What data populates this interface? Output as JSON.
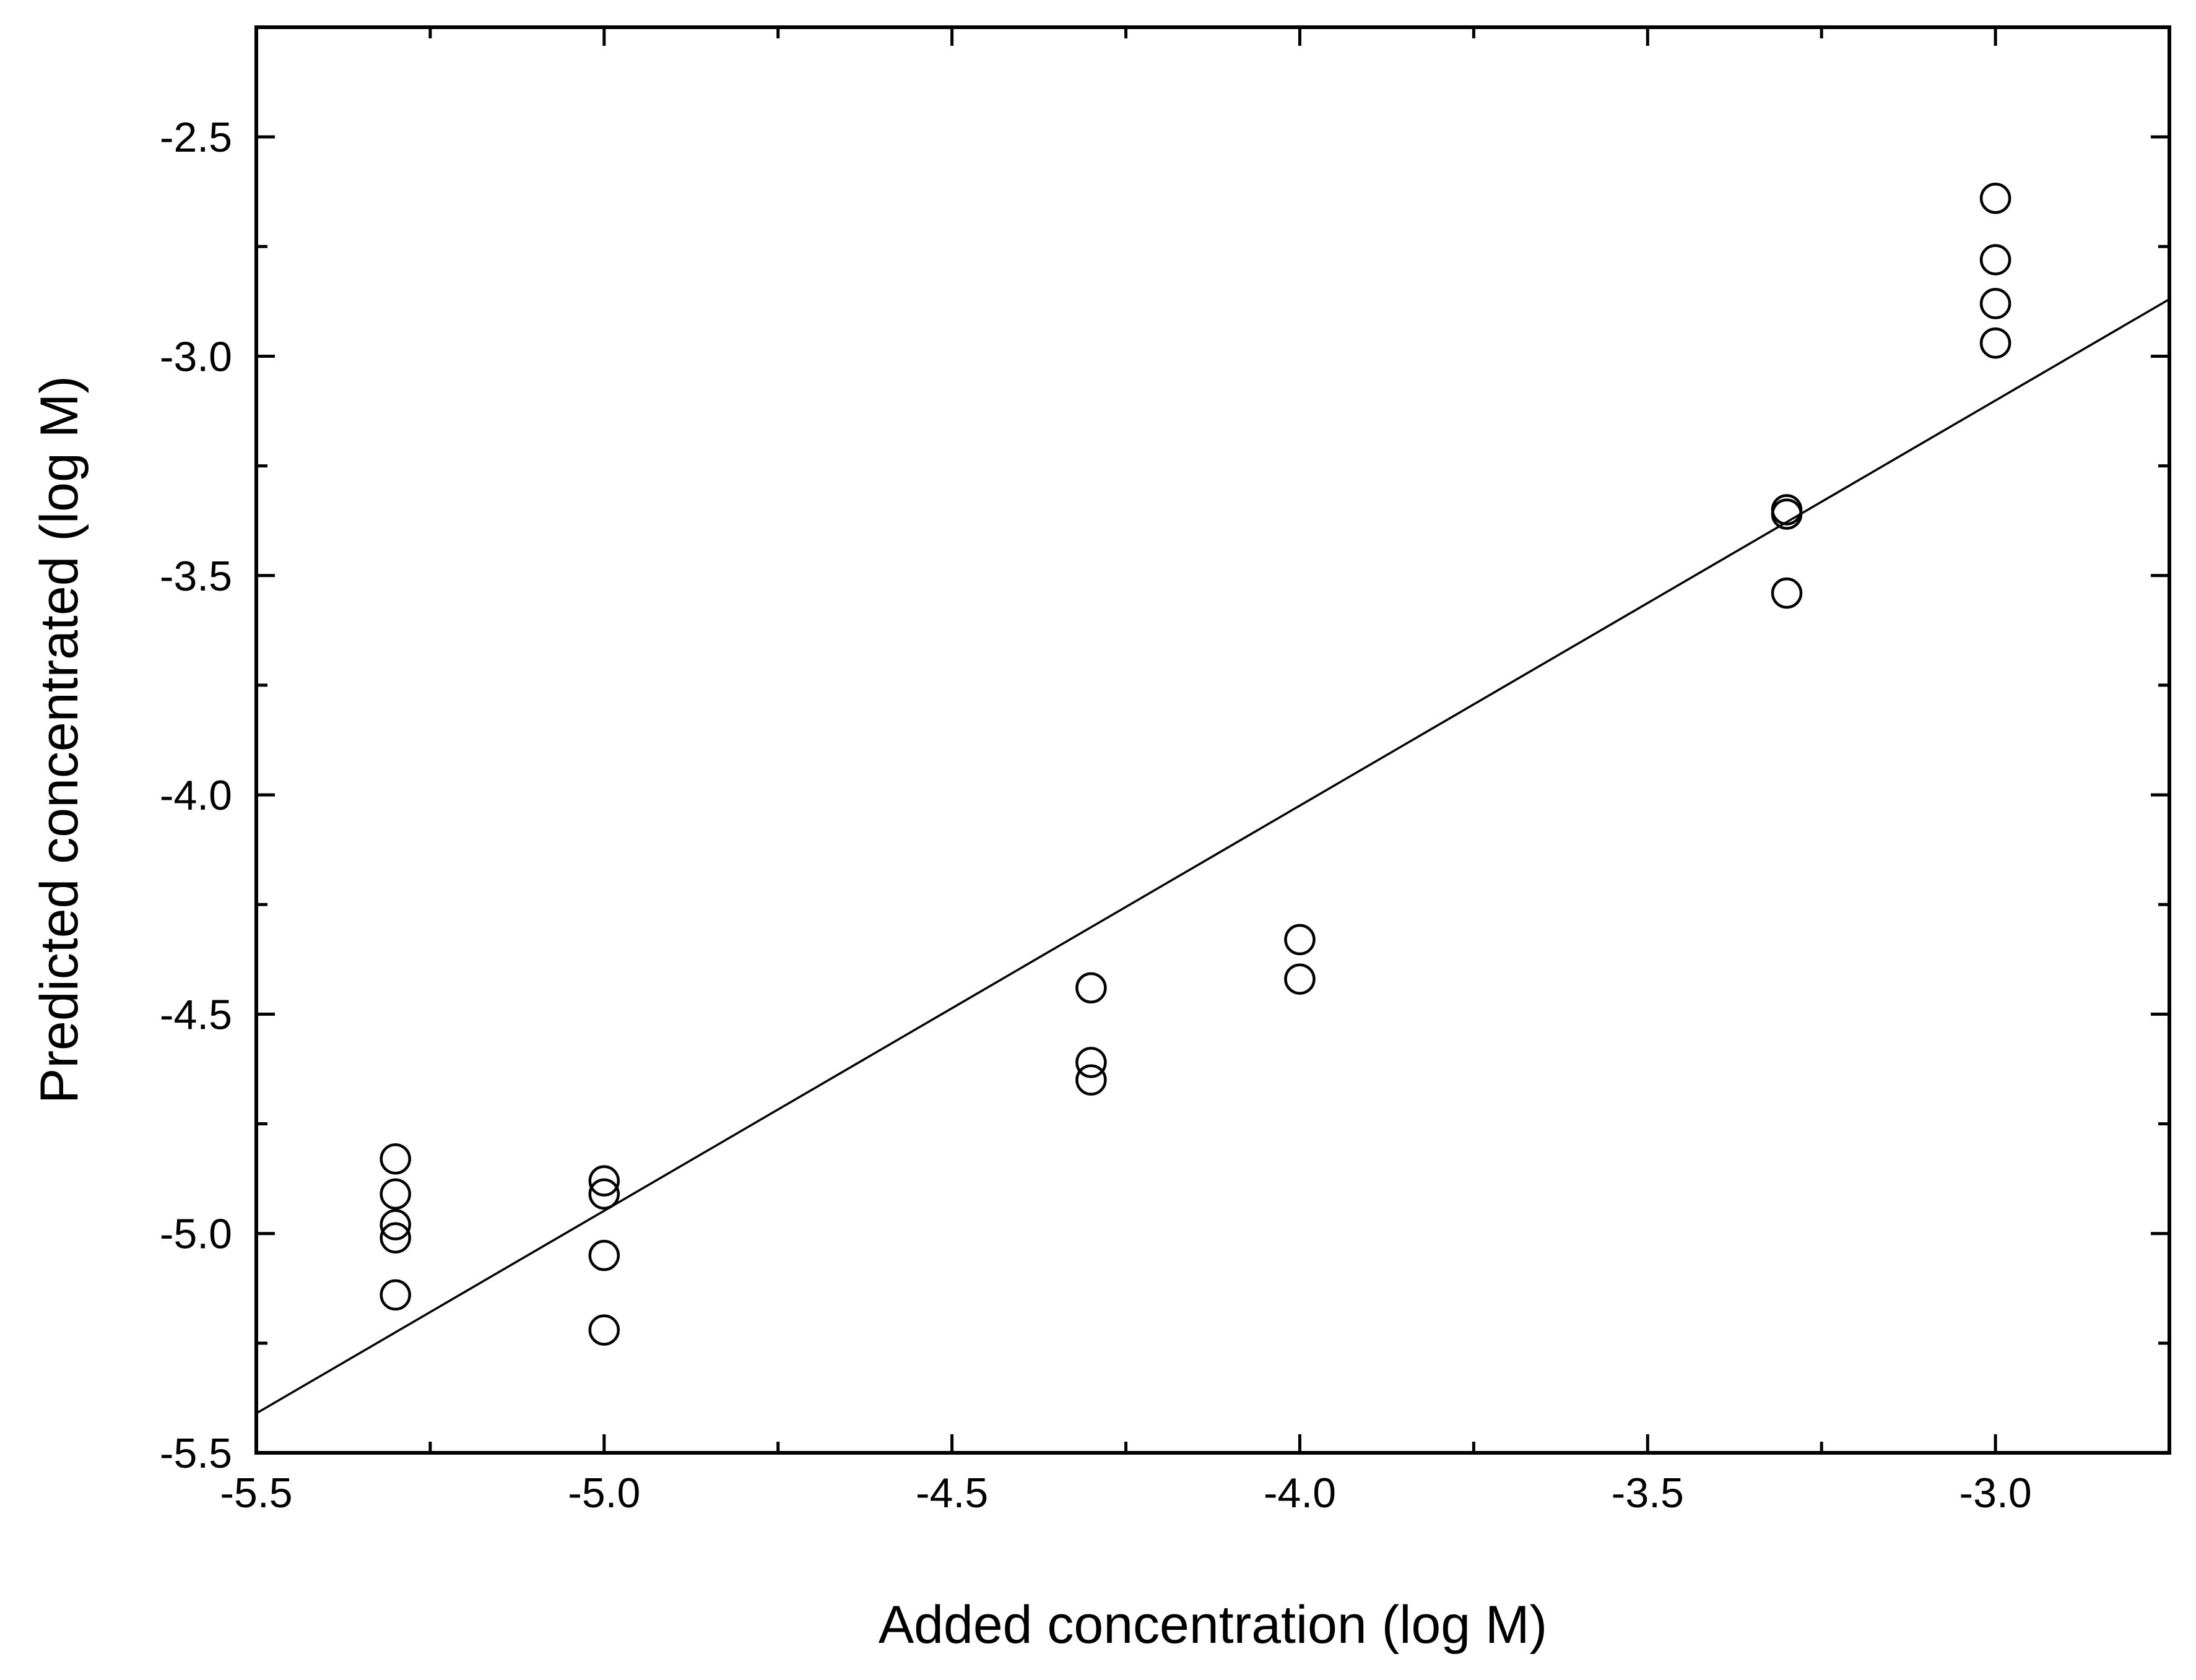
{
  "chart_data": {
    "type": "scatter",
    "xlabel": "Added concentration (log M)",
    "ylabel": "Predicted concentrated (log M)",
    "xlim": [
      -5.5,
      -2.75
    ],
    "ylim": [
      -5.5,
      -2.25
    ],
    "x_ticks": [
      "-5.5",
      "-5.0",
      "-4.5",
      "-4.0",
      "-3.5",
      "-3.0"
    ],
    "y_ticks": [
      "-5.5",
      "-5.0",
      "-4.5",
      "-4.0",
      "-3.5",
      "-3.0",
      "-2.5"
    ],
    "x_tick_values": [
      -5.5,
      -5.0,
      -4.5,
      -4.0,
      -3.5,
      -3.0
    ],
    "y_tick_values": [
      -5.5,
      -5.0,
      -4.5,
      -4.0,
      -3.5,
      -3.0,
      -2.5
    ],
    "x_minor_tick_values": [
      -5.25,
      -4.75,
      -4.25,
      -3.75,
      -3.25,
      -2.75
    ],
    "y_minor_tick_values": [
      -5.25,
      -4.75,
      -4.25,
      -3.75,
      -3.25,
      -2.75
    ],
    "grid": false,
    "marker": "open-circle",
    "points": [
      {
        "x": -5.3,
        "y": -4.83
      },
      {
        "x": -5.3,
        "y": -4.91
      },
      {
        "x": -5.3,
        "y": -5.01
      },
      {
        "x": -5.3,
        "y": -4.98
      },
      {
        "x": -5.3,
        "y": -5.14
      },
      {
        "x": -5.0,
        "y": -4.88
      },
      {
        "x": -5.0,
        "y": -4.91
      },
      {
        "x": -5.0,
        "y": -5.05
      },
      {
        "x": -5.0,
        "y": -5.22
      },
      {
        "x": -4.3,
        "y": -4.44
      },
      {
        "x": -4.3,
        "y": -4.61
      },
      {
        "x": -4.3,
        "y": -4.65
      },
      {
        "x": -4.0,
        "y": -4.33
      },
      {
        "x": -4.0,
        "y": -4.42
      },
      {
        "x": -3.3,
        "y": -3.35
      },
      {
        "x": -3.3,
        "y": -3.36
      },
      {
        "x": -3.3,
        "y": -3.54
      },
      {
        "x": -3.0,
        "y": -2.64
      },
      {
        "x": -3.0,
        "y": -2.78
      },
      {
        "x": -3.0,
        "y": -2.88
      },
      {
        "x": -3.0,
        "y": -2.97
      }
    ],
    "fit_line": {
      "x": [
        -5.5,
        -2.75
      ],
      "y": [
        -5.41,
        -2.87
      ]
    },
    "colors": {
      "marker_stroke": "#000000",
      "marker_fill": "#ffffff",
      "line": "#000000",
      "axes": "#000000"
    }
  }
}
